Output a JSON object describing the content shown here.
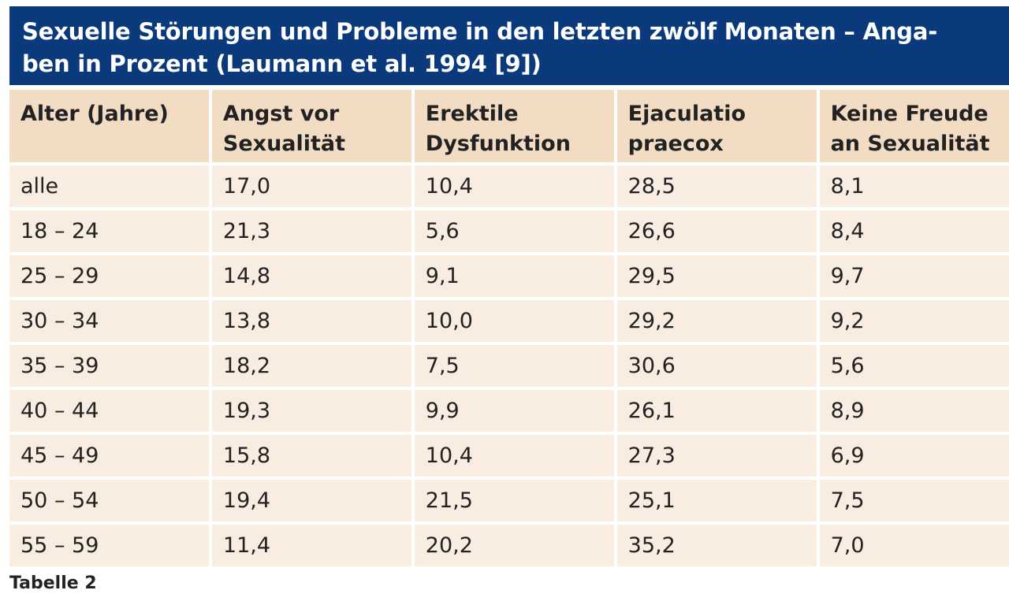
{
  "title": {
    "line1": "Sexuelle Störungen und Probleme in den letzten zwölf Monaten – Anga-",
    "line2": "ben in Prozent (Laumann et al. 1994 [9])"
  },
  "columns": [
    "Alter (Jahre)",
    "Angst vor Sexualität",
    "Erektile Dysfunktion",
    "Ejaculatio praecox",
    "Keine Freude an Sexualität"
  ],
  "column_lines": [
    [
      "Alter (Jahre)",
      ""
    ],
    [
      "Angst vor",
      "Sexualität"
    ],
    [
      "Erektile",
      "Dysfunktion"
    ],
    [
      "Ejaculatio",
      "praecox"
    ],
    [
      "Keine Freude",
      "an Sexualität"
    ]
  ],
  "rows": [
    [
      "alle",
      "17,0",
      "10,4",
      "28,5",
      "8,1"
    ],
    [
      "18 – 24",
      "21,3",
      "5,6",
      "26,6",
      "8,4"
    ],
    [
      "25 – 29",
      "14,8",
      "9,1",
      "29,5",
      "9,7"
    ],
    [
      "30 – 34",
      "13,8",
      "10,0",
      "29,2",
      "9,2"
    ],
    [
      "35 – 39",
      "18,2",
      "7,5",
      "30,6",
      "5,6"
    ],
    [
      "40 – 44",
      "19,3",
      "9,9",
      "26,1",
      "8,9"
    ],
    [
      "45 – 49",
      "15,8",
      "10,4",
      "27,3",
      "6,9"
    ],
    [
      "50 – 54",
      "19,4",
      "21,5",
      "25,1",
      "7,5"
    ],
    [
      "55 – 59",
      "11,4",
      "20,2",
      "35,2",
      "7,0"
    ]
  ],
  "caption": "Tabelle 2",
  "colors": {
    "title_bg": "#0a3a7c",
    "header_bg": "#f2ddc4",
    "cell_bg": "#f9ece0"
  }
}
